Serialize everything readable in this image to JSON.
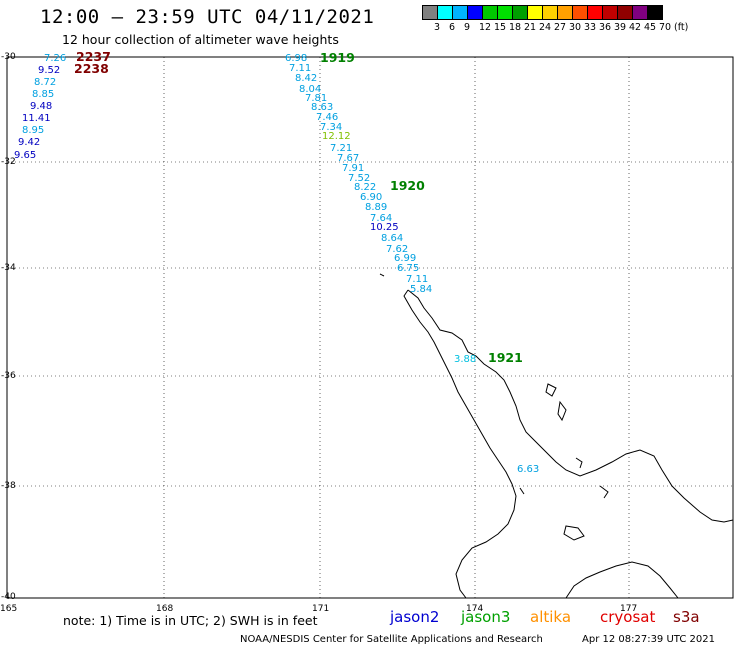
{
  "header": {
    "title": "12:00 – 23:59 UTC 04/11/2021",
    "subtitle": "12 hour collection of altimeter wave heights"
  },
  "legend": {
    "colors": [
      "#808080",
      "#00ffff",
      "#00b4ff",
      "#0000ff",
      "#00c800",
      "#00e000",
      "#00a000",
      "#ffff00",
      "#ffd000",
      "#ffa000",
      "#ff5000",
      "#ff0000",
      "#c00000",
      "#900000",
      "#800080",
      "#000000"
    ],
    "labels": [
      "3",
      "6",
      "9",
      "12",
      "15",
      "18",
      "21",
      "24",
      "27",
      "30",
      "33",
      "36",
      "39",
      "42",
      "45",
      "70",
      "(ft)"
    ]
  },
  "axes": {
    "lat_labels": [
      "-30",
      "-32",
      "-34",
      "-36",
      "-38",
      "-40"
    ],
    "lon_labels": [
      "165",
      "168",
      "171",
      "174",
      "177"
    ]
  },
  "tracks": [
    {
      "time": "1919",
      "color": "#008000"
    },
    {
      "time": "1920",
      "color": "#008000"
    },
    {
      "time": "1921",
      "color": "#008000"
    },
    {
      "time": "2237",
      "color": "#800000"
    },
    {
      "time": "2238",
      "color": "#800000"
    }
  ],
  "values": {
    "west_track": [
      {
        "text": "7.26",
        "color": "#00a0e0"
      },
      {
        "text": "9.52",
        "color": "#0000c0"
      },
      {
        "text": "8.72",
        "color": "#00a0e0"
      },
      {
        "text": "8.85",
        "color": "#00a0e0"
      },
      {
        "text": "9.48",
        "color": "#0000c0"
      },
      {
        "text": "11.41",
        "color": "#0000c0"
      },
      {
        "text": "8.95",
        "color": "#00a0e0"
      },
      {
        "text": "9.42",
        "color": "#0000c0"
      },
      {
        "text": "9.65",
        "color": "#0000c0"
      }
    ],
    "main_track": [
      {
        "text": "6.98",
        "color": "#00a0e0"
      },
      {
        "text": "7.11",
        "color": "#00a0e0"
      },
      {
        "text": "8.42",
        "color": "#00a0e0"
      },
      {
        "text": "8.04",
        "color": "#00a0e0"
      },
      {
        "text": "7.81",
        "color": "#00a0e0"
      },
      {
        "text": "8.63",
        "color": "#00a0e0"
      },
      {
        "text": "7.46",
        "color": "#00a0e0"
      },
      {
        "text": "7.34",
        "color": "#00a0e0"
      },
      {
        "text": "12.12",
        "color": "#80c000"
      },
      {
        "text": "7.21",
        "color": "#00a0e0"
      },
      {
        "text": "7.67",
        "color": "#00a0e0"
      },
      {
        "text": "7.91",
        "color": "#00a0e0"
      },
      {
        "text": "7.52",
        "color": "#00a0e0"
      },
      {
        "text": "8.22",
        "color": "#00a0e0"
      },
      {
        "text": "6.90",
        "color": "#00a0e0"
      },
      {
        "text": "8.89",
        "color": "#00a0e0"
      },
      {
        "text": "7.64",
        "color": "#00a0e0"
      },
      {
        "text": "10.25",
        "color": "#0000c0"
      },
      {
        "text": "8.64",
        "color": "#00a0e0"
      },
      {
        "text": "7.62",
        "color": "#00a0e0"
      },
      {
        "text": "6.99",
        "color": "#00a0e0"
      },
      {
        "text": "6.75",
        "color": "#00a0e0"
      },
      {
        "text": "7.11",
        "color": "#00a0e0"
      },
      {
        "text": "5.84",
        "color": "#00a0e0"
      },
      {
        "text": "3.88",
        "color": "#00c0e0"
      },
      {
        "text": "6.63",
        "color": "#00a0e0"
      }
    ]
  },
  "note": "note:  1) Time is in UTC;  2) SWH is in feet",
  "satellites": [
    {
      "name": "jason2",
      "color": "#0000d0"
    },
    {
      "name": "jason3",
      "color": "#00a000"
    },
    {
      "name": "altika",
      "color": "#ff9000"
    },
    {
      "name": "cryosat",
      "color": "#e00000"
    },
    {
      "name": "s3a",
      "color": "#800000"
    }
  ],
  "footer": {
    "credit": "NOAA/NESDIS Center for Satellite Applications and Research",
    "timestamp": "Apr 12 08:27:39 UTC 2021"
  }
}
